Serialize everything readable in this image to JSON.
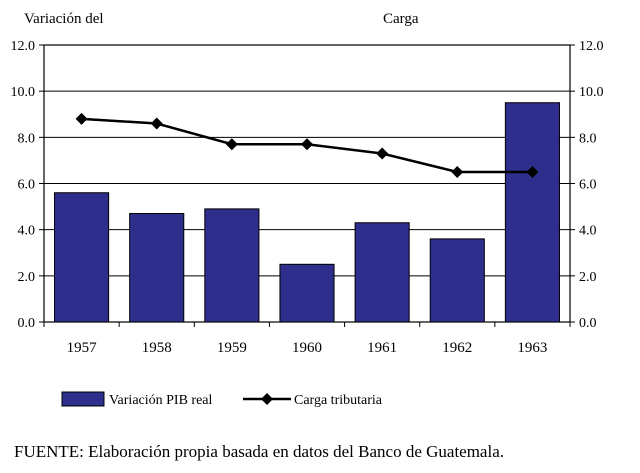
{
  "chart_data": {
    "type": "bar",
    "left_axis_title": "Variación del",
    "right_axis_title": "Carga",
    "categories": [
      "1957",
      "1958",
      "1959",
      "1960",
      "1961",
      "1962",
      "1963"
    ],
    "ylim": [
      0,
      12
    ],
    "yticks": [
      "0.0",
      "2.0",
      "4.0",
      "6.0",
      "8.0",
      "10.0",
      "12.0"
    ],
    "grid": true,
    "legend_position": "bottom",
    "series": [
      {
        "name": "Variación PIB real",
        "type": "bar",
        "color": "#2e2e8c",
        "values": [
          5.6,
          4.7,
          4.9,
          2.5,
          4.3,
          3.6,
          9.5
        ]
      },
      {
        "name": "Carga tributaria",
        "type": "line",
        "axis": "right",
        "color": "#000000",
        "values": [
          8.8,
          8.6,
          7.7,
          7.7,
          7.3,
          6.5,
          6.5
        ]
      }
    ]
  },
  "footer": {
    "source": "FUENTE: Elaboración propia basada en datos del Banco de Guatemala."
  }
}
